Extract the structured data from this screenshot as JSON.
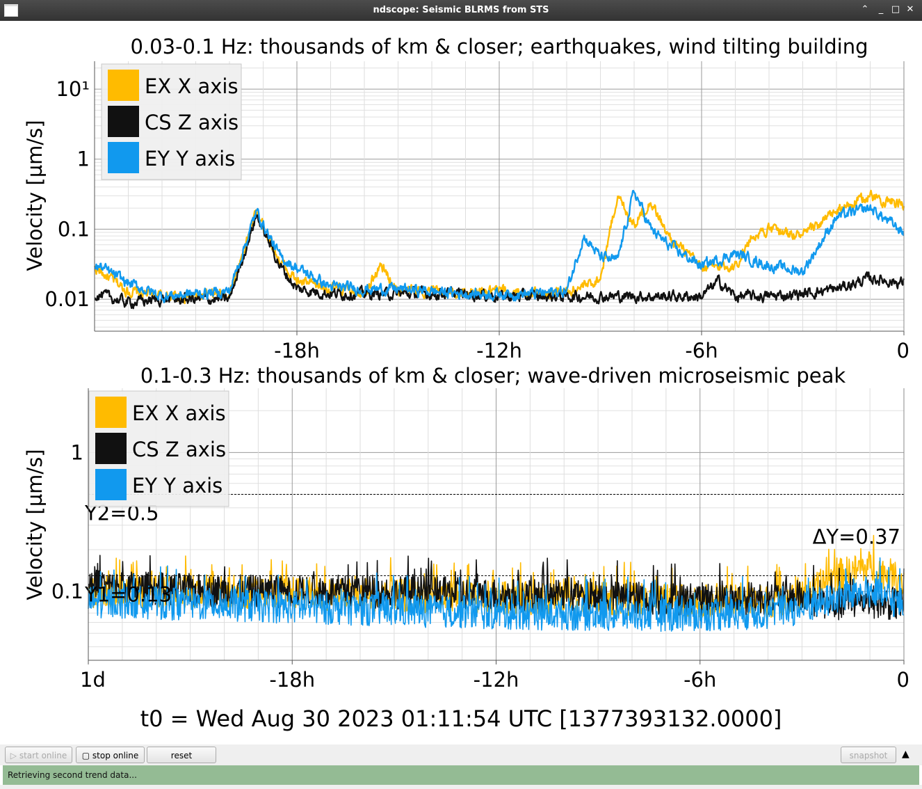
{
  "window": {
    "title": "ndscope: Seismic BLRMS from STS"
  },
  "colors": {
    "ex": "#ffbb00",
    "cs": "#111111",
    "ey": "#1199ee",
    "status": "#94bb94"
  },
  "chart_data": [
    {
      "type": "line",
      "title": "0.03-0.1 Hz: thousands of km & closer; earthquakes, wind tilting building",
      "ylabel": "Velocity [µm/s]",
      "yscale": "log",
      "ylim": [
        0.0035,
        25
      ],
      "xlim": [
        -24,
        0
      ],
      "x_ticks": [
        "-18h",
        "-12h",
        "-6h",
        "0"
      ],
      "y_ticks": [
        {
          "value": 10,
          "label": "10¹"
        },
        {
          "value": 1,
          "label": "1"
        },
        {
          "value": 0.1,
          "label": "0.1"
        },
        {
          "value": 0.01,
          "label": "0.01"
        }
      ],
      "grid": true,
      "legend_position": "top-left",
      "series": [
        {
          "name": "EX X axis",
          "color": "ex",
          "x": [
            -24,
            -23,
            -22,
            -21,
            -20,
            -19.2,
            -18.5,
            -18,
            -17,
            -16,
            -15.5,
            -15,
            -14,
            -13,
            -12,
            -11,
            -10,
            -9.5,
            -9,
            -8.5,
            -8,
            -7.5,
            -7,
            -6,
            -5,
            -4.5,
            -4,
            -3,
            -2,
            -1,
            0
          ],
          "y": [
            0.028,
            0.013,
            0.011,
            0.011,
            0.012,
            0.18,
            0.035,
            0.018,
            0.014,
            0.013,
            0.03,
            0.013,
            0.013,
            0.012,
            0.013,
            0.012,
            0.013,
            0.015,
            0.02,
            0.3,
            0.12,
            0.25,
            0.08,
            0.028,
            0.03,
            0.08,
            0.1,
            0.08,
            0.18,
            0.3,
            0.22
          ]
        },
        {
          "name": "CS Z axis",
          "color": "cs",
          "x": [
            -24,
            -23,
            -22,
            -21,
            -20,
            -19.2,
            -18.5,
            -18,
            -17,
            -16,
            -15,
            -14,
            -13,
            -12,
            -11,
            -10,
            -9,
            -8,
            -7,
            -6,
            -5.5,
            -5,
            -4,
            -3,
            -2,
            -1,
            0
          ],
          "y": [
            0.012,
            0.009,
            0.01,
            0.01,
            0.01,
            0.16,
            0.03,
            0.014,
            0.012,
            0.012,
            0.012,
            0.012,
            0.012,
            0.011,
            0.011,
            0.011,
            0.011,
            0.011,
            0.011,
            0.011,
            0.018,
            0.011,
            0.011,
            0.012,
            0.014,
            0.02,
            0.017
          ]
        },
        {
          "name": "EY Y axis",
          "color": "ey",
          "x": [
            -24,
            -23,
            -22,
            -21,
            -20,
            -19.2,
            -18.5,
            -18,
            -17,
            -16,
            -15,
            -14,
            -13,
            -12,
            -11,
            -10,
            -9.5,
            -9,
            -8.5,
            -8,
            -7.5,
            -7,
            -6,
            -5,
            -4,
            -3,
            -2,
            -1,
            0
          ],
          "y": [
            0.032,
            0.017,
            0.011,
            0.012,
            0.013,
            0.18,
            0.04,
            0.028,
            0.015,
            0.014,
            0.014,
            0.013,
            0.012,
            0.012,
            0.012,
            0.013,
            0.08,
            0.04,
            0.035,
            0.35,
            0.1,
            0.06,
            0.03,
            0.045,
            0.03,
            0.025,
            0.15,
            0.2,
            0.09
          ]
        }
      ]
    },
    {
      "type": "line",
      "title": "0.1-0.3 Hz: thousands of km & closer; wave-driven microseismic peak",
      "ylabel": "Velocity [µm/s]",
      "yscale": "log",
      "ylim": [
        0.032,
        2.9
      ],
      "xlim": [
        -24,
        0
      ],
      "x_ticks": [
        "1d",
        "-18h",
        "-12h",
        "-6h",
        "0"
      ],
      "y_ticks": [
        {
          "value": 1,
          "label": "1"
        },
        {
          "value": 0.1,
          "label": "0.1"
        }
      ],
      "grid": true,
      "legend_position": "top-left",
      "cursors": {
        "y1": 0.13,
        "y2": 0.5,
        "y1_label": "Y1=0.13",
        "y2_label": "Y2=0.5",
        "dy_label": "ΔY=0.37"
      },
      "series": [
        {
          "name": "EX X axis",
          "color": "ex",
          "x": [
            -24,
            -20,
            -16,
            -12,
            -8,
            -6,
            -4,
            -3,
            -2,
            -1,
            0
          ],
          "y": [
            0.1,
            0.1,
            0.095,
            0.09,
            0.088,
            0.085,
            0.085,
            0.09,
            0.13,
            0.15,
            0.12
          ]
        },
        {
          "name": "CS Z axis",
          "color": "cs",
          "x": [
            -24,
            -20,
            -16,
            -12,
            -8,
            -6,
            -4,
            -3,
            -2,
            -1,
            0
          ],
          "y": [
            0.11,
            0.1,
            0.1,
            0.095,
            0.09,
            0.088,
            0.09,
            0.09,
            0.08,
            0.085,
            0.08
          ]
        },
        {
          "name": "EY Y axis",
          "color": "ey",
          "x": [
            -24,
            -20,
            -16,
            -12,
            -8,
            -6,
            -4,
            -3,
            -2,
            -1,
            0
          ],
          "y": [
            0.085,
            0.08,
            0.075,
            0.07,
            0.068,
            0.068,
            0.07,
            0.075,
            0.09,
            0.1,
            0.08
          ]
        }
      ]
    }
  ],
  "t0_label": "t0 = Wed Aug 30 2023 01:11:54 UTC [1377393132.0000]",
  "toolbar": {
    "start_label": "start online",
    "stop_label": "stop online",
    "reset_label": "reset",
    "snapshot_label": "snapshot"
  },
  "status": {
    "text": "Retrieving second trend data..."
  }
}
